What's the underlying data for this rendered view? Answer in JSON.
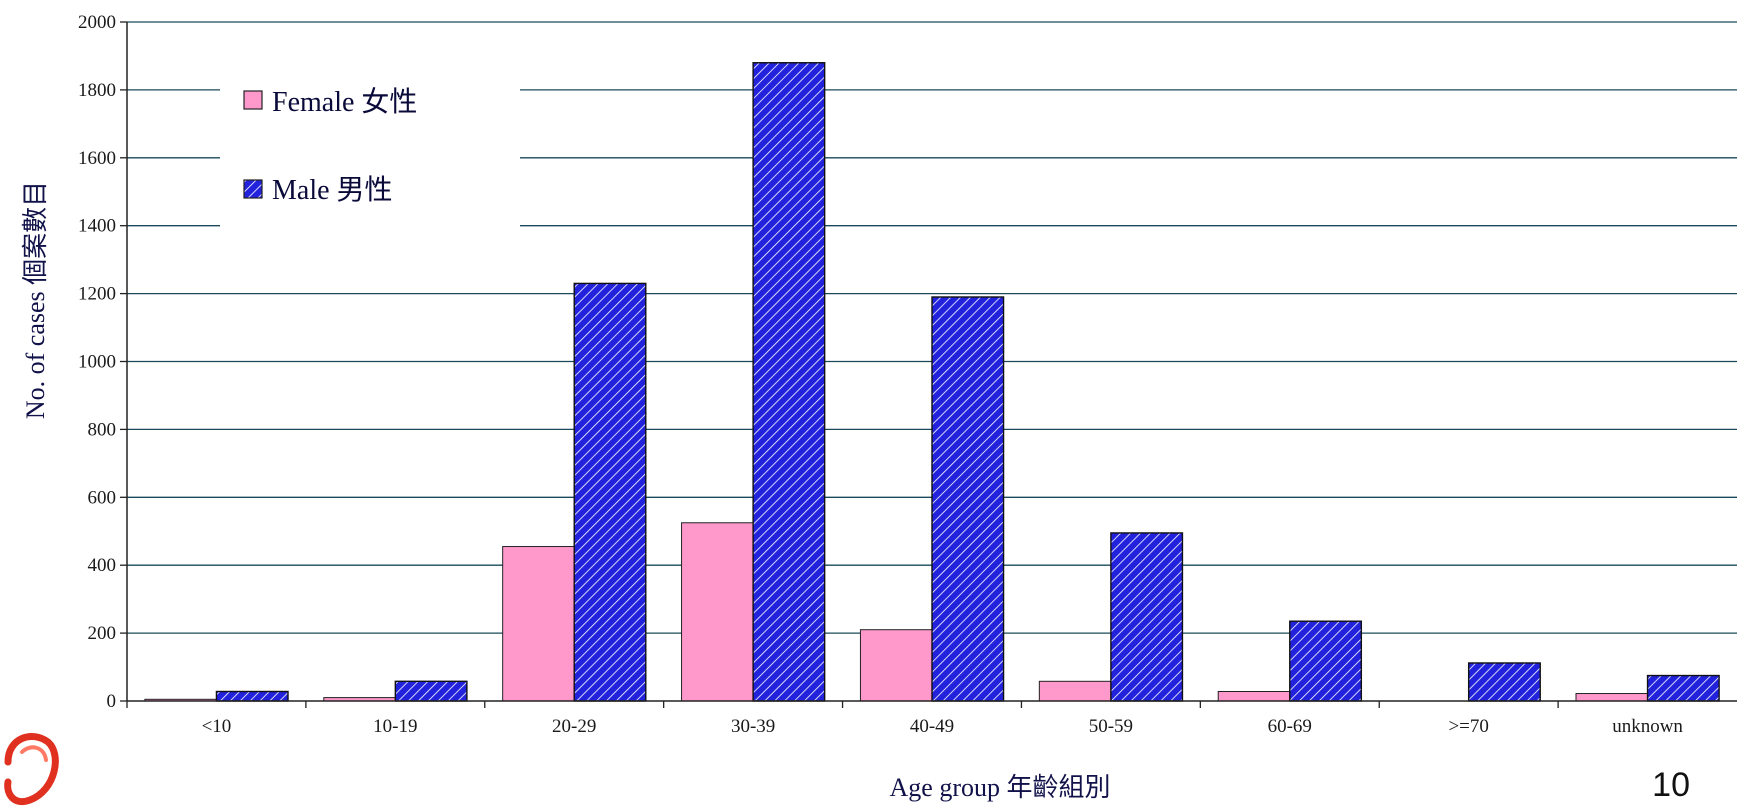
{
  "page_number": "10",
  "colors": {
    "female": "#ff99cc",
    "male": "#2222dd",
    "male_hatch": "#ffffff",
    "grid": "#1a4a5a",
    "axis_text": "#1a1a1a",
    "logo_red": "#e03020"
  },
  "logo": {
    "icon": "organization-logo-icon"
  },
  "chart_data": {
    "type": "bar",
    "title": "",
    "xlabel": "Age group 年齡組別",
    "ylabel": "No. of cases 個案數目",
    "ylim": [
      0,
      2000
    ],
    "yticks": [
      0,
      200,
      400,
      600,
      800,
      1000,
      1200,
      1400,
      1600,
      1800,
      2000
    ],
    "grid": true,
    "legend_position": "top-left",
    "categories": [
      "<10",
      "10-19",
      "20-29",
      "30-39",
      "40-49",
      "50-59",
      "60-69",
      ">=70",
      "unknown"
    ],
    "series": [
      {
        "name": "Female 女性",
        "values": [
          5,
          10,
          455,
          525,
          210,
          58,
          28,
          0,
          22
        ]
      },
      {
        "name": "Male 男性",
        "values": [
          28,
          58,
          1230,
          1880,
          1190,
          495,
          235,
          112,
          75
        ]
      }
    ]
  }
}
